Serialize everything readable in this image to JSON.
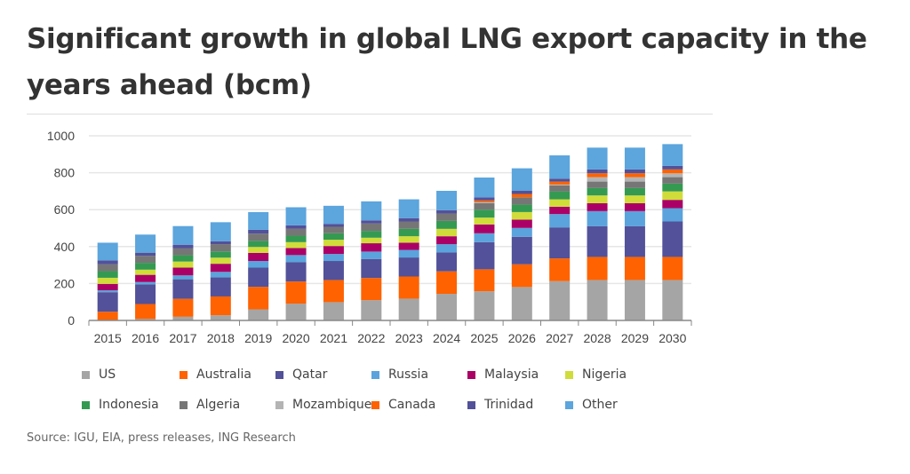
{
  "title": "Significant growth in global LNG export capacity in the years ahead (bcm)",
  "source": "Source: IGU, EIA, press releases, ING Research",
  "chart_data": {
    "type": "bar",
    "stacked": true,
    "title": "Significant growth in global LNG export capacity in the years ahead (bcm)",
    "xlabel": "",
    "ylabel": "",
    "ylim": [
      0,
      1000
    ],
    "yticks": [
      0,
      200,
      400,
      600,
      800,
      1000
    ],
    "grid": true,
    "legend_position": "bottom",
    "categories": [
      "2015",
      "2016",
      "2017",
      "2018",
      "2019",
      "2020",
      "2021",
      "2022",
      "2023",
      "2024",
      "2025",
      "2026",
      "2027",
      "2028",
      "2029",
      "2030"
    ],
    "series": [
      {
        "name": "US",
        "color": "#a5a5a5",
        "values": [
          0,
          8,
          20,
          28,
          60,
          91,
          99,
          110,
          118,
          144,
          158,
          181,
          213,
          219,
          219,
          219
        ]
      },
      {
        "name": "Australia",
        "color": "#ff6200",
        "values": [
          47,
          81,
          97,
          102,
          122,
          120,
          120,
          120,
          120,
          122,
          119,
          123,
          123,
          125,
          125,
          125
        ]
      },
      {
        "name": "Qatar",
        "color": "#525199",
        "values": [
          106,
          106,
          106,
          104,
          104,
          104,
          103,
          103,
          103,
          102,
          147,
          149,
          168,
          166,
          166,
          192
        ]
      },
      {
        "name": "Russia",
        "color": "#5ba3dc",
        "values": [
          10,
          13,
          21,
          29,
          36,
          39,
          38,
          40,
          41,
          45,
          48,
          48,
          72,
          82,
          82,
          72
        ]
      },
      {
        "name": "Malaysia",
        "color": "#ab0066",
        "values": [
          35,
          39,
          42,
          44,
          44,
          38,
          43,
          45,
          39,
          43,
          48,
          45,
          40,
          43,
          43,
          45
        ]
      },
      {
        "name": "Nigeria",
        "color": "#d0dc3a",
        "values": [
          33,
          28,
          33,
          33,
          32,
          32,
          34,
          30,
          35,
          40,
          37,
          41,
          40,
          42,
          42,
          46
        ]
      },
      {
        "name": "Indonesia",
        "color": "#349a52",
        "values": [
          36,
          37,
          34,
          34,
          33,
          35,
          35,
          37,
          40,
          43,
          43,
          40,
          43,
          40,
          40,
          42
        ]
      },
      {
        "name": "Algeria",
        "color": "#767676",
        "values": [
          37,
          38,
          37,
          39,
          39,
          37,
          35,
          40,
          40,
          40,
          35,
          40,
          32,
          35,
          35,
          35
        ]
      },
      {
        "name": "Mozambique",
        "color": "#b4b4b4",
        "values": [
          0,
          0,
          0,
          0,
          0,
          0,
          0,
          0,
          0,
          0,
          5,
          0,
          5,
          24,
          24,
          21
        ]
      },
      {
        "name": "Canada",
        "color": "#ff6200",
        "values": [
          0,
          0,
          0,
          0,
          0,
          0,
          0,
          0,
          0,
          0,
          10,
          18,
          16,
          21,
          21,
          21
        ]
      },
      {
        "name": "Trinidad",
        "color": "#525199",
        "values": [
          21,
          17,
          20,
          16,
          21,
          19,
          16,
          17,
          18,
          18,
          17,
          17,
          16,
          21,
          21,
          19
        ]
      },
      {
        "name": "Other",
        "color": "#5ca5dd",
        "values": [
          96,
          98,
          101,
          103,
          96,
          98,
          98,
          103,
          102,
          105,
          107,
          122,
          126,
          118,
          118,
          118
        ]
      }
    ]
  }
}
